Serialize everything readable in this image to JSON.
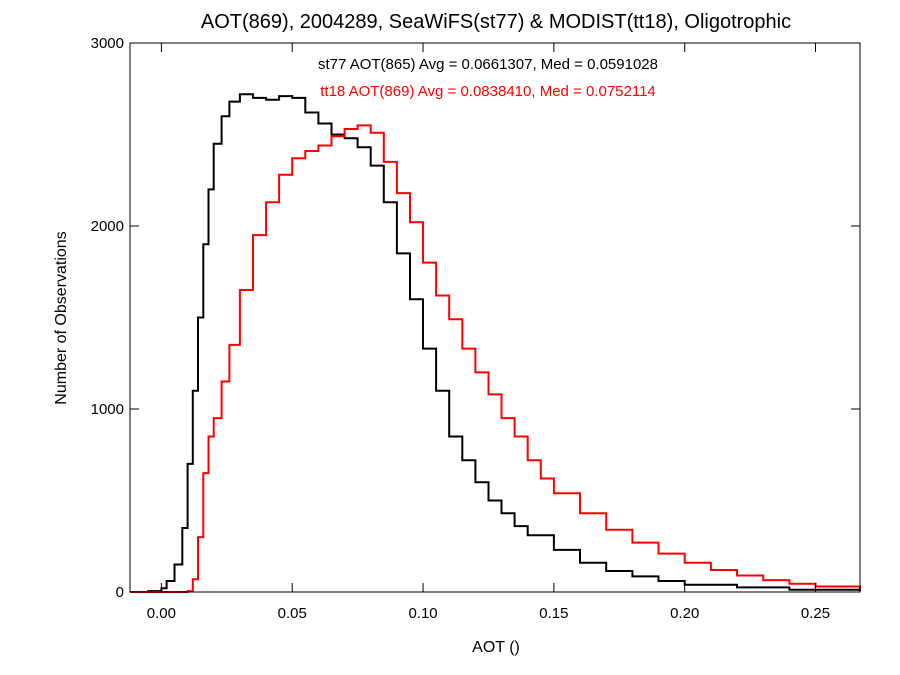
{
  "chart_data": {
    "type": "line",
    "title": "AOT(869), 2004289, SeaWiFS(st77) & MODIST(tt18), Oligotrophic",
    "xlabel": "AOT ()",
    "ylabel": "Number of Observations",
    "xlim": [
      -0.012,
      0.267
    ],
    "ylim": [
      0,
      3000
    ],
    "x_ticks": [
      0.0,
      0.05,
      0.1,
      0.15,
      0.2,
      0.25
    ],
    "x_tick_labels": [
      "0.00",
      "0.05",
      "0.10",
      "0.15",
      "0.20",
      "0.25"
    ],
    "y_ticks": [
      0,
      1000,
      2000,
      3000
    ],
    "y_tick_labels": [
      "0",
      "1000",
      "2000",
      "3000"
    ],
    "grid": false,
    "annotations": [
      {
        "text": "st77 AOT(865) Avg = 0.0661307, Med = 0.0591028",
        "color": "#000000"
      },
      {
        "text": "tt18 AOT(869) Avg = 0.0838410, Med = 0.0752114",
        "color": "#ff0000"
      }
    ],
    "series": [
      {
        "color": "#000000",
        "x": [
          -0.012,
          -0.005,
          0.0,
          0.002,
          0.005,
          0.008,
          0.01,
          0.012,
          0.014,
          0.016,
          0.018,
          0.02,
          0.023,
          0.026,
          0.03,
          0.035,
          0.04,
          0.045,
          0.05,
          0.055,
          0.06,
          0.065,
          0.07,
          0.075,
          0.08,
          0.085,
          0.09,
          0.095,
          0.1,
          0.105,
          0.11,
          0.115,
          0.12,
          0.125,
          0.13,
          0.135,
          0.14,
          0.15,
          0.16,
          0.17,
          0.18,
          0.19,
          0.2,
          0.22,
          0.24,
          0.267
        ],
        "y": [
          0,
          5,
          20,
          60,
          150,
          350,
          700,
          1100,
          1500,
          1900,
          2200,
          2450,
          2600,
          2680,
          2720,
          2700,
          2690,
          2710,
          2700,
          2620,
          2560,
          2500,
          2480,
          2430,
          2330,
          2130,
          1850,
          1600,
          1330,
          1100,
          850,
          720,
          600,
          500,
          430,
          360,
          310,
          230,
          160,
          115,
          85,
          60,
          40,
          25,
          12,
          5
        ]
      },
      {
        "color": "#ff0000",
        "x": [
          -0.012,
          0.0,
          0.005,
          0.01,
          0.012,
          0.014,
          0.016,
          0.018,
          0.02,
          0.023,
          0.026,
          0.03,
          0.035,
          0.04,
          0.045,
          0.05,
          0.055,
          0.06,
          0.065,
          0.07,
          0.075,
          0.08,
          0.085,
          0.09,
          0.095,
          0.1,
          0.105,
          0.11,
          0.115,
          0.12,
          0.125,
          0.13,
          0.135,
          0.14,
          0.145,
          0.15,
          0.16,
          0.17,
          0.18,
          0.19,
          0.2,
          0.21,
          0.22,
          0.23,
          0.24,
          0.25,
          0.267
        ],
        "y": [
          0,
          0,
          0,
          5,
          70,
          300,
          650,
          850,
          950,
          1150,
          1350,
          1650,
          1950,
          2130,
          2280,
          2370,
          2410,
          2440,
          2490,
          2530,
          2550,
          2510,
          2350,
          2180,
          2020,
          1800,
          1620,
          1490,
          1330,
          1200,
          1080,
          950,
          850,
          720,
          620,
          540,
          430,
          340,
          270,
          210,
          160,
          120,
          90,
          65,
          45,
          30,
          12
        ]
      }
    ]
  }
}
